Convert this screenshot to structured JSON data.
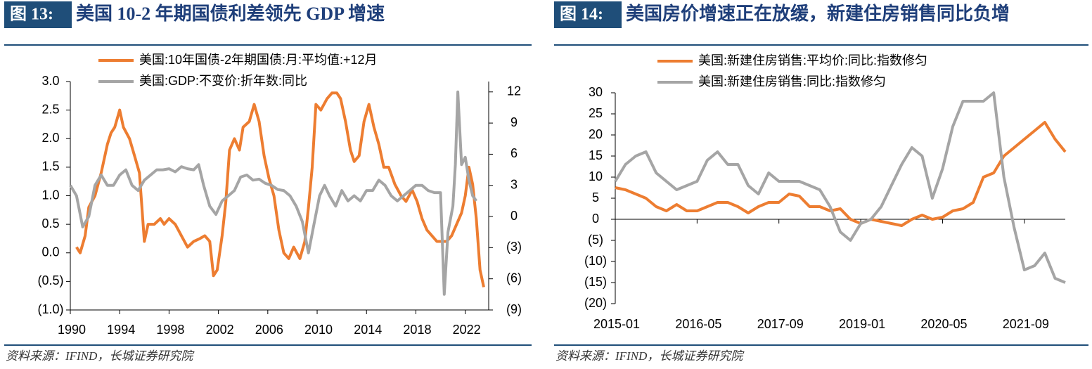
{
  "chart_data": [
    {
      "type": "line",
      "figure_label": "图 13:",
      "title": "美国 10-2 年期国债利差领先 GDP 增速",
      "source": "资料来源：IFIND，长城证券研究院",
      "x_axis_position": "bottom",
      "negative_label_color": "#ff0000",
      "xlim": [
        1990,
        2023.9
      ],
      "xticks": [
        1990,
        1994,
        1998,
        2002,
        2006,
        2010,
        2014,
        2018,
        2022
      ],
      "ylim": [
        -1,
        3
      ],
      "yticks": [
        {
          "value": 3,
          "label": "3.0"
        },
        2.5,
        {
          "value": 2,
          "label": "2.0"
        },
        1.5,
        {
          "value": 1,
          "label": "1.0"
        },
        0.5,
        {
          "value": 0,
          "label": "0.0"
        },
        {
          "value": -0.5,
          "label": "(0.5)"
        },
        {
          "value": -1,
          "label": "(1.0)"
        }
      ],
      "y2lim": [
        -9,
        13
      ],
      "y2ticks": [
        12,
        9,
        6,
        3,
        0,
        {
          "value": -3,
          "label": "(3)"
        },
        {
          "value": -6,
          "label": "(6)"
        },
        {
          "value": -9,
          "label": "(9)"
        }
      ],
      "series": [
        {
          "name": "美国:10年国债-2年期国债:月:平均值:+12月",
          "color": "#ed7d31",
          "axis": "y",
          "x": [
            1990.5,
            1990.8,
            1991.2,
            1991.5,
            1992,
            1992.5,
            1993,
            1993.3,
            1993.6,
            1994,
            1994.3,
            1994.8,
            1995.2,
            1995.6,
            1996,
            1996.3,
            1996.8,
            1997.3,
            1997.6,
            1998,
            1998.5,
            1999,
            1999.5,
            2000,
            2000.5,
            2000.9,
            2001.3,
            2001.6,
            2001.9,
            2002.3,
            2002.6,
            2002.9,
            2003.3,
            2003.7,
            2004,
            2004.5,
            2004.9,
            2005.3,
            2005.7,
            2006.1,
            2006.5,
            2006.9,
            2007.3,
            2007.7,
            2008.1,
            2008.6,
            2009,
            2009.3,
            2009.6,
            2009.9,
            2010.3,
            2010.8,
            2011.2,
            2011.6,
            2011.9,
            2012.3,
            2012.7,
            2013,
            2013.4,
            2013.8,
            2014.2,
            2014.6,
            2015,
            2015.4,
            2015.8,
            2016.3,
            2016.8,
            2017.2,
            2017.7,
            2018.1,
            2018.5,
            2018.9,
            2019.3,
            2019.7,
            2020.1,
            2020.5,
            2020.9,
            2021.3,
            2021.7,
            2022,
            2022.3,
            2022.6,
            2022.9,
            2023.2,
            2023.5
          ],
          "values": [
            0.1,
            0.0,
            0.3,
            0.8,
            1.0,
            1.4,
            1.9,
            2.1,
            2.2,
            2.5,
            2.2,
            2.0,
            1.7,
            1.4,
            0.2,
            0.5,
            0.5,
            0.6,
            0.5,
            0.6,
            0.5,
            0.3,
            0.1,
            0.2,
            0.25,
            0.3,
            0.2,
            -0.4,
            -0.3,
            0.3,
            0.9,
            1.8,
            2.0,
            1.8,
            2.2,
            2.3,
            2.6,
            2.3,
            1.7,
            1.3,
            1.0,
            0.4,
            0.0,
            -0.1,
            0.1,
            -0.1,
            0.2,
            0.8,
            1.5,
            2.6,
            2.5,
            2.7,
            2.8,
            2.8,
            2.7,
            2.3,
            1.8,
            1.6,
            1.7,
            2.3,
            2.6,
            2.2,
            1.9,
            1.5,
            1.5,
            1.2,
            1.0,
            0.9,
            1.1,
            0.9,
            0.6,
            0.4,
            0.3,
            0.2,
            0.2,
            0.2,
            0.3,
            0.5,
            0.7,
            1.0,
            1.5,
            1.2,
            0.6,
            -0.3,
            -0.6
          ]
        },
        {
          "name": "美国:GDP:不变价:折年数:同比",
          "color": "#a5a5a5",
          "axis": "y2",
          "x": [
            1990,
            1990.5,
            1991,
            1991.5,
            1992,
            1992.5,
            1993,
            1993.5,
            1994,
            1994.5,
            1995,
            1995.5,
            1996,
            1996.5,
            1997,
            1997.5,
            1998,
            1998.5,
            1999,
            1999.5,
            2000,
            2000.4,
            2000.8,
            2001.3,
            2001.8,
            2002.3,
            2002.8,
            2003.3,
            2003.8,
            2004.3,
            2004.8,
            2005.3,
            2005.8,
            2006.3,
            2006.8,
            2007.3,
            2007.8,
            2008.3,
            2008.8,
            2009.3,
            2009.7,
            2010.2,
            2010.6,
            2011,
            2011.5,
            2012,
            2012.5,
            2013,
            2013.5,
            2014,
            2014.5,
            2015,
            2015.5,
            2016,
            2016.5,
            2017,
            2017.5,
            2018,
            2018.5,
            2019,
            2019.5,
            2020,
            2020.3,
            2020.6,
            2021,
            2021.2,
            2021.4,
            2021.7,
            2022,
            2022.3,
            2022.6,
            2022.9
          ],
          "values": [
            3,
            2,
            -1,
            0,
            3,
            4,
            3,
            3,
            4,
            4.5,
            3,
            2.5,
            3.5,
            4,
            4.5,
            4.5,
            4.6,
            4.3,
            4.8,
            4.6,
            4.5,
            5,
            3,
            1,
            0.2,
            1.5,
            2,
            2.5,
            3.8,
            4,
            3.5,
            3.6,
            3.2,
            3,
            2.6,
            2.5,
            2,
            1,
            -0.5,
            -3.5,
            -1,
            2,
            3,
            2,
            1,
            2.5,
            1.5,
            2,
            1.5,
            2.5,
            2.5,
            3.5,
            3,
            2,
            1.5,
            2,
            2.5,
            3,
            3,
            2.5,
            2.3,
            2.3,
            -7.5,
            -1.5,
            1,
            5,
            12,
            5,
            5.7,
            3.5,
            2,
            1.5
          ]
        }
      ]
    },
    {
      "type": "line",
      "figure_label": "图 14:",
      "title": "美国房价增速正在放缓，新建住房销售同比负增",
      "source": "资料来源：IFIND，长城证券研究院",
      "x_axis_position": "zero",
      "negative_label_color": "#ff0000",
      "xlim": [
        "2015-01",
        "2022-05"
      ],
      "xticks": [
        "2015-01",
        "2016-05",
        "2017-09",
        "2019-01",
        "2020-05",
        "2021-09"
      ],
      "ylim": [
        -20,
        30
      ],
      "yticks": [
        30,
        25,
        20,
        15,
        10,
        5,
        0,
        {
          "value": -5,
          "label": "(5)"
        },
        {
          "value": -10,
          "label": "(10)"
        },
        {
          "value": -15,
          "label": "(15)"
        },
        {
          "value": -20,
          "label": "(20)"
        }
      ],
      "x": [
        "2015-01",
        "2015-03",
        "2015-05",
        "2015-07",
        "2015-09",
        "2015-11",
        "2016-01",
        "2016-03",
        "2016-05",
        "2016-07",
        "2016-09",
        "2016-11",
        "2017-01",
        "2017-03",
        "2017-05",
        "2017-07",
        "2017-09",
        "2017-11",
        "2018-01",
        "2018-03",
        "2018-05",
        "2018-07",
        "2018-09",
        "2018-11",
        "2019-01",
        "2019-03",
        "2019-05",
        "2019-07",
        "2019-09",
        "2019-11",
        "2020-01",
        "2020-03",
        "2020-05",
        "2020-07",
        "2020-09",
        "2020-11",
        "2021-01",
        "2021-03",
        "2021-05",
        "2021-07",
        "2021-09",
        "2021-11",
        "2022-01",
        "2022-03",
        "2022-05"
      ],
      "series": [
        {
          "name": "美国:新建住房销售:平均价:同比:指数修匀",
          "color": "#ed7d31",
          "values": [
            7.5,
            7,
            6,
            5,
            3,
            2,
            3.5,
            2,
            2,
            3,
            4,
            4,
            3,
            1.5,
            3,
            4,
            4,
            6,
            5.5,
            3,
            3,
            2,
            2.5,
            0,
            -1,
            0,
            -0.5,
            -1,
            -1.5,
            0,
            1,
            0,
            0.5,
            2,
            2.5,
            4,
            10,
            11,
            15,
            17,
            19,
            21,
            23,
            19,
            16
          ]
        },
        {
          "name": "美国:新建住房销售:同比:指数修匀",
          "color": "#a5a5a5",
          "values": [
            9,
            13,
            15,
            16,
            11,
            9,
            7,
            8,
            9,
            14,
            16,
            13,
            13,
            8,
            6,
            11,
            9,
            9,
            9,
            8,
            7,
            3,
            -3,
            -5,
            -1,
            0,
            3,
            8,
            13,
            17,
            15,
            5,
            12,
            22,
            28,
            28,
            28,
            30,
            10,
            -2,
            -12,
            -11,
            -8,
            -14,
            -15
          ]
        }
      ]
    }
  ]
}
